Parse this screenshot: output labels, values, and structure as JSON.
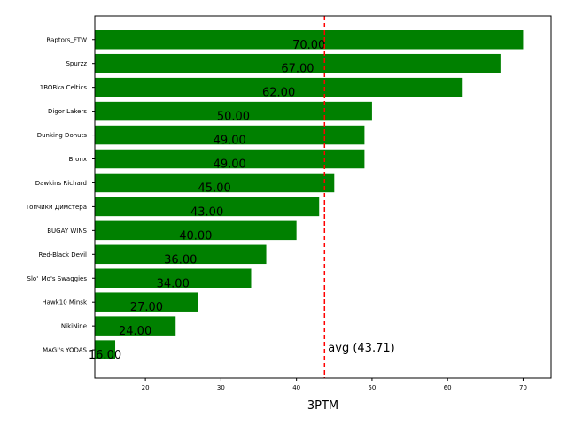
{
  "chart_data": {
    "type": "bar",
    "orientation": "horizontal",
    "categories": [
      "Raptors_FTW",
      "Spurzz",
      "1BOBka Celtics",
      "Digor Lakers",
      "Dunking Donuts",
      "Bronx",
      "Dawkins Richard",
      "Топчики Димстера",
      "BUGAY WINS",
      "Red-Black Devil",
      "Slo'_Mo's Swaggies",
      "Hawk10 Minsk",
      "NikiNine",
      "MAGI's YODAS"
    ],
    "values": [
      70,
      67,
      62,
      50,
      49,
      49,
      45,
      43,
      40,
      36,
      34,
      27,
      24,
      16
    ],
    "value_labels": [
      "70.00",
      "67.00",
      "62.00",
      "50.00",
      "49.00",
      "49.00",
      "45.00",
      "43.00",
      "40.00",
      "36.00",
      "34.00",
      "27.00",
      "24.00",
      "16.00"
    ],
    "xlabel": "3PTM",
    "xlim": [
      13.3,
      73.7
    ],
    "xticks": [
      "20",
      "30",
      "40",
      "50",
      "60",
      "70"
    ],
    "average": 43.71,
    "average_label": "avg (43.71)",
    "bar_color": "#008000",
    "avg_line_color": "#ff0000",
    "grid": false
  }
}
